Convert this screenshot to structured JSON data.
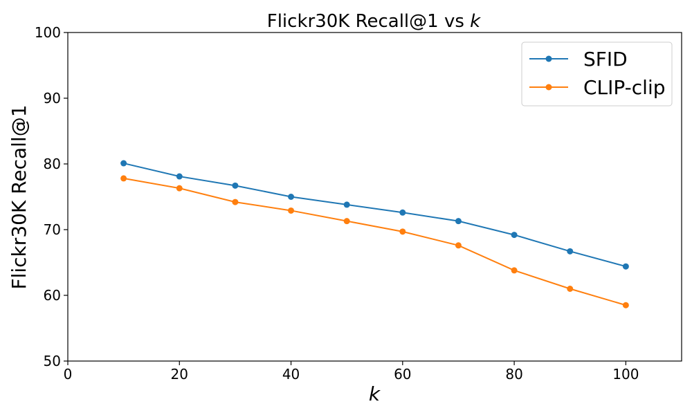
{
  "chart_data": {
    "type": "line",
    "title": "Flickr30K Recall@1 vs ",
    "title_var": "k",
    "xlabel": "k",
    "ylabel": "Flickr30K Recall@1",
    "xlim": [
      0,
      110
    ],
    "ylim": [
      50,
      100
    ],
    "xticks": [
      0,
      20,
      40,
      60,
      80,
      100
    ],
    "yticks": [
      50,
      60,
      70,
      80,
      90,
      100
    ],
    "grid": false,
    "legend_position": "top-right",
    "x": [
      10,
      20,
      30,
      40,
      50,
      60,
      70,
      80,
      90,
      100
    ],
    "series": [
      {
        "name": "SFID",
        "color": "#1f77b4",
        "values": [
          80.1,
          78.1,
          76.7,
          75.0,
          73.8,
          72.6,
          71.3,
          69.2,
          66.7,
          64.4
        ]
      },
      {
        "name": "CLIP-clip",
        "color": "#ff7f0e",
        "values": [
          77.8,
          76.3,
          74.2,
          72.9,
          71.3,
          69.7,
          67.6,
          63.8,
          61.0,
          58.5
        ]
      }
    ]
  }
}
